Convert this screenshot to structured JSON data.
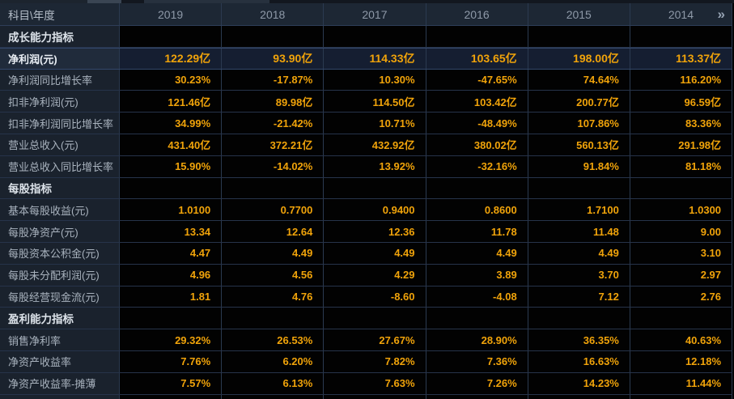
{
  "header": {
    "corner_label": "科目\\年度",
    "years": [
      "2019",
      "2018",
      "2017",
      "2016",
      "2015",
      "2014"
    ],
    "more_columns_icon": "»"
  },
  "table": {
    "rows": [
      {
        "type": "section",
        "label": "成长能力指标"
      },
      {
        "type": "data",
        "selected": true,
        "label": "净利润(元)",
        "values": [
          "122.29亿",
          "93.90亿",
          "114.33亿",
          "103.65亿",
          "198.00亿",
          "113.37亿"
        ]
      },
      {
        "type": "data",
        "label": "净利润同比增长率",
        "values": [
          "30.23%",
          "-17.87%",
          "10.30%",
          "-47.65%",
          "74.64%",
          "116.20%"
        ]
      },
      {
        "type": "data",
        "label": "扣非净利润(元)",
        "values": [
          "121.46亿",
          "89.98亿",
          "114.50亿",
          "103.42亿",
          "200.77亿",
          "96.59亿"
        ]
      },
      {
        "type": "data",
        "label": "扣非净利润同比增长率",
        "values": [
          "34.99%",
          "-21.42%",
          "10.71%",
          "-48.49%",
          "107.86%",
          "83.36%"
        ]
      },
      {
        "type": "data",
        "label": "营业总收入(元)",
        "values": [
          "431.40亿",
          "372.21亿",
          "432.92亿",
          "380.02亿",
          "560.13亿",
          "291.98亿"
        ]
      },
      {
        "type": "data",
        "label": "营业总收入同比增长率",
        "values": [
          "15.90%",
          "-14.02%",
          "13.92%",
          "-32.16%",
          "91.84%",
          "81.18%"
        ]
      },
      {
        "type": "section",
        "label": "每股指标"
      },
      {
        "type": "data",
        "label": "基本每股收益(元)",
        "values": [
          "1.0100",
          "0.7700",
          "0.9400",
          "0.8600",
          "1.7100",
          "1.0300"
        ]
      },
      {
        "type": "data",
        "label": "每股净资产(元)",
        "values": [
          "13.34",
          "12.64",
          "12.36",
          "11.78",
          "11.48",
          "9.00"
        ]
      },
      {
        "type": "data",
        "label": "每股资本公积金(元)",
        "values": [
          "4.47",
          "4.49",
          "4.49",
          "4.49",
          "4.49",
          "3.10"
        ]
      },
      {
        "type": "data",
        "label": "每股未分配利润(元)",
        "values": [
          "4.96",
          "4.56",
          "4.29",
          "3.89",
          "3.70",
          "2.97"
        ]
      },
      {
        "type": "data",
        "label": "每股经营现金流(元)",
        "values": [
          "1.81",
          "4.76",
          "-8.60",
          "-4.08",
          "7.12",
          "2.76"
        ]
      },
      {
        "type": "section",
        "label": "盈利能力指标"
      },
      {
        "type": "data",
        "label": "销售净利率",
        "values": [
          "29.32%",
          "26.53%",
          "27.67%",
          "28.90%",
          "36.35%",
          "40.63%"
        ]
      },
      {
        "type": "data",
        "label": "净资产收益率",
        "values": [
          "7.76%",
          "6.20%",
          "7.82%",
          "7.36%",
          "16.63%",
          "12.18%"
        ]
      },
      {
        "type": "data",
        "label": "净资产收益率-摊薄",
        "values": [
          "7.57%",
          "6.13%",
          "7.63%",
          "7.26%",
          "14.23%",
          "11.44%"
        ]
      }
    ]
  },
  "colors": {
    "value_gold": "#F0A30A",
    "header_bg": "#1D2734",
    "label_column_bg": "#1A222D",
    "selected_row_bg": "#151E31",
    "selected_row_label_bg": "#202B3B",
    "gridline": "#2B3A50",
    "cell_bg": "#020202",
    "header_text": "#8E99A8",
    "label_text": "#A9B3BE"
  }
}
